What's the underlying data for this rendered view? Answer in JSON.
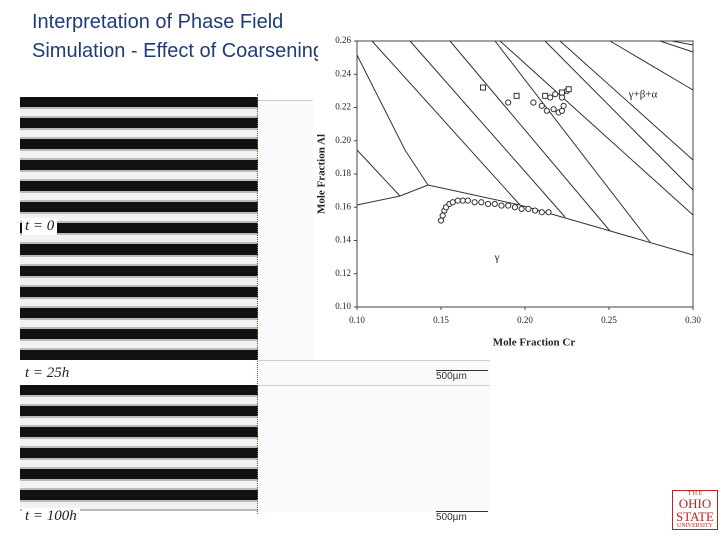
{
  "header": {
    "title": "Interpretation of Phase Field Simulation - Effect of Coarsening"
  },
  "panels": [
    {
      "label": "t = 0"
    },
    {
      "label": "t = 25h",
      "scale": "500µm"
    },
    {
      "label": "t = 100h",
      "scale": "500µm"
    }
  ],
  "logo": {
    "lines": [
      "T H E",
      "OHIO",
      "STATE",
      "UNIVERSITY"
    ]
  },
  "chart_data": {
    "type": "scatter",
    "xlabel": "Mole Fraction Cr",
    "ylabel": "Mole Fraction Al",
    "annotations": [
      "γ+β+α",
      "γ"
    ],
    "xlim": [
      0.1,
      0.3
    ],
    "ylim": [
      0.1,
      0.26
    ],
    "xticks": [
      {
        "value": 0.1,
        "label": "0.10"
      },
      {
        "value": 0.15,
        "label": "0.15"
      },
      {
        "value": 0.2,
        "label": "0.20"
      },
      {
        "value": 0.25,
        "label": "0.25"
      },
      {
        "value": 0.3,
        "label": "0.30"
      }
    ],
    "yticks": [
      {
        "value": 0.1,
        "label": "0.10"
      },
      {
        "value": 0.12,
        "label": "0.12"
      },
      {
        "value": 0.14,
        "label": "0.14"
      },
      {
        "value": 0.16,
        "label": "0.16"
      },
      {
        "value": 0.18,
        "label": "0.18"
      },
      {
        "value": 0.2,
        "label": "0.20"
      },
      {
        "value": 0.22,
        "label": "0.22"
      },
      {
        "value": 0.24,
        "label": "0.24"
      },
      {
        "value": 0.26,
        "label": "0.26"
      }
    ],
    "series": [
      {
        "marker": "circle",
        "color": "#333333",
        "x": [
          0.15,
          0.151,
          0.152,
          0.153,
          0.155,
          0.157,
          0.16,
          0.163,
          0.166,
          0.17,
          0.174,
          0.178,
          0.182,
          0.186,
          0.19,
          0.194,
          0.198,
          0.202,
          0.206,
          0.21,
          0.214
        ],
        "values": [
          0.152,
          0.155,
          0.158,
          0.16,
          0.162,
          0.163,
          0.164,
          0.164,
          0.164,
          0.163,
          0.163,
          0.162,
          0.162,
          0.161,
          0.161,
          0.16,
          0.159,
          0.159,
          0.158,
          0.157,
          0.157
        ]
      },
      {
        "marker": "circle",
        "color": "#333333",
        "x": [
          0.19,
          0.205,
          0.21,
          0.213,
          0.217,
          0.22,
          0.222,
          0.223,
          0.222,
          0.218,
          0.215,
          0.225
        ],
        "values": [
          0.223,
          0.223,
          0.221,
          0.218,
          0.219,
          0.217,
          0.218,
          0.221,
          0.226,
          0.228,
          0.226,
          0.23
        ]
      },
      {
        "marker": "square",
        "color": "#333333",
        "x": [
          0.175,
          0.195,
          0.212,
          0.222,
          0.226
        ],
        "values": [
          0.232,
          0.227,
          0.227,
          0.229,
          0.231
        ]
      }
    ]
  }
}
